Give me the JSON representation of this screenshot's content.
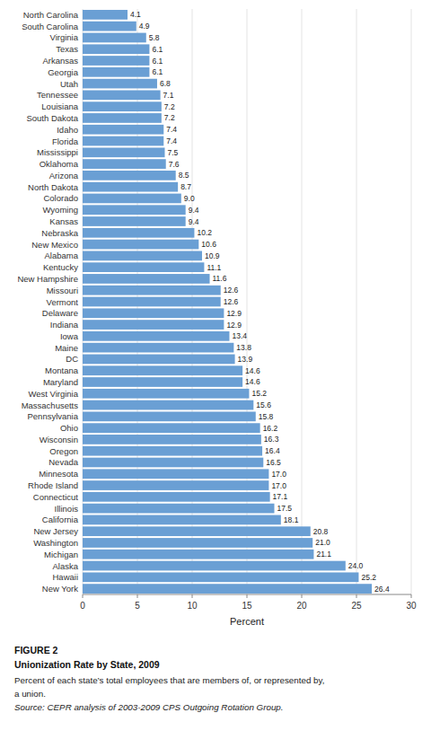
{
  "chart_data": {
    "type": "bar",
    "orientation": "horizontal",
    "title": "Unionization Rate by State, 2009",
    "annotations": [
      "FIGURE 2",
      "Percent of each state’s total employees that are members of, or represented by,",
      "a union.",
      "Source: CEPR analysis of 2003-2009 CPS Outgoing Rotation Group."
    ],
    "xlabel": "Percent",
    "categories": [
      "North Carolina",
      "South Carolina",
      "Virginia",
      "Texas",
      "Arkansas",
      "Georgia",
      "Utah",
      "Tennessee",
      "Louisiana",
      "South Dakota",
      "Idaho",
      "Florida",
      "Mississippi",
      "Oklahoma",
      "Arizona",
      "North Dakota",
      "Colorado",
      "Wyoming",
      "Kansas",
      "Nebraska",
      "New Mexico",
      "Alabama",
      "Kentucky",
      "New Hampshire",
      "Missouri",
      "Vermont",
      "Delaware",
      "Indiana",
      "Iowa",
      "Maine",
      "DC",
      "Montana",
      "Maryland",
      "West Virginia",
      "Massachusetts",
      "Pennsylvania",
      "Ohio",
      "Wisconsin",
      "Oregon",
      "Nevada",
      "Minnesota",
      "Rhode Island",
      "Connecticut",
      "Illinois",
      "California",
      "New Jersey",
      "Washington",
      "Michigan",
      "Alaska",
      "Hawaii",
      "New York"
    ],
    "values": [
      4.1,
      4.9,
      5.8,
      6.1,
      6.1,
      6.1,
      6.8,
      7.1,
      7.2,
      7.2,
      7.4,
      7.4,
      7.5,
      7.6,
      8.5,
      8.7,
      9.0,
      9.4,
      9.4,
      10.2,
      10.6,
      10.9,
      11.1,
      11.6,
      12.6,
      12.6,
      12.9,
      12.9,
      13.4,
      13.8,
      13.9,
      14.6,
      14.6,
      15.2,
      15.6,
      15.8,
      16.2,
      16.3,
      16.4,
      16.5,
      17.0,
      17.0,
      17.1,
      17.5,
      18.1,
      20.8,
      21.0,
      21.1,
      24.0,
      25.2,
      26.4
    ],
    "value_labels": [
      "4.1",
      "4.9",
      "5.8",
      "6.1",
      "6.1",
      "6.1",
      "6.8",
      "7.1",
      "7.2",
      "7.2",
      "7.4",
      "7.4",
      "7.5",
      "7.6",
      "8.5",
      "8.7",
      "9.0",
      "9.4",
      "9.4",
      "10.2",
      "10.6",
      "10.9",
      "11.1",
      "11.6",
      "12.6",
      "12.6",
      "12.9",
      "12.9",
      "13.4",
      "13.8",
      "13.9",
      "14.6",
      "14.6",
      "15.2",
      "15.6",
      "15.8",
      "16.2",
      "16.3",
      "16.4",
      "16.5",
      "17.0",
      "17.0",
      "17.1",
      "17.5",
      "18.1",
      "20.8",
      "21.0",
      "21.1",
      "24.0",
      "25.2",
      "26.4"
    ],
    "color": "#6a9fd4",
    "data_labels": true,
    "xlim": [
      0,
      30
    ],
    "xticks": [
      0,
      5,
      10,
      15,
      20,
      25,
      30
    ],
    "grid": true
  }
}
